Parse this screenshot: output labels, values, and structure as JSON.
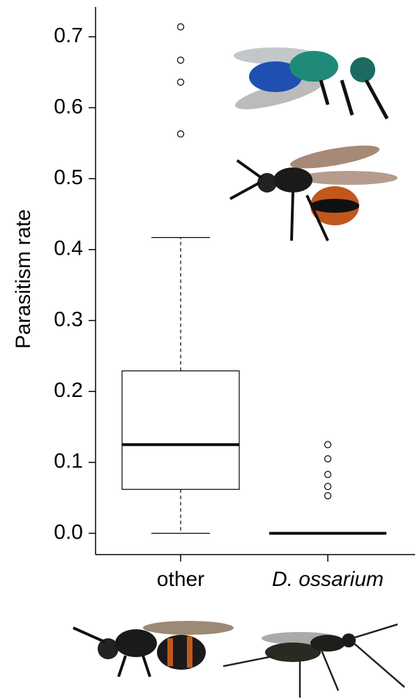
{
  "chart_data": {
    "type": "box",
    "y_label": "Parasitism rate",
    "categories": [
      "other",
      "D. ossarium"
    ],
    "boxes": [
      {
        "whisker_low": 0,
        "q1": 0.062,
        "median": 0.125,
        "q3": 0.229,
        "whisker_high": 0.417,
        "outliers": [
          0.563,
          0.636,
          0.667,
          0.714
        ]
      },
      {
        "whisker_low": 0,
        "q1": 0,
        "median": 0,
        "q3": 0,
        "whisker_high": 0,
        "outliers": [
          0.053,
          0.066,
          0.083,
          0.105,
          0.125
        ]
      }
    ],
    "ylim": [
      -0.03,
      0.742
    ],
    "yticks": [
      {
        "value": 0,
        "label": "0.0"
      },
      0.1,
      0.2,
      0.3,
      0.4,
      0.5,
      0.6,
      0.7
    ],
    "color": "#000000"
  }
}
